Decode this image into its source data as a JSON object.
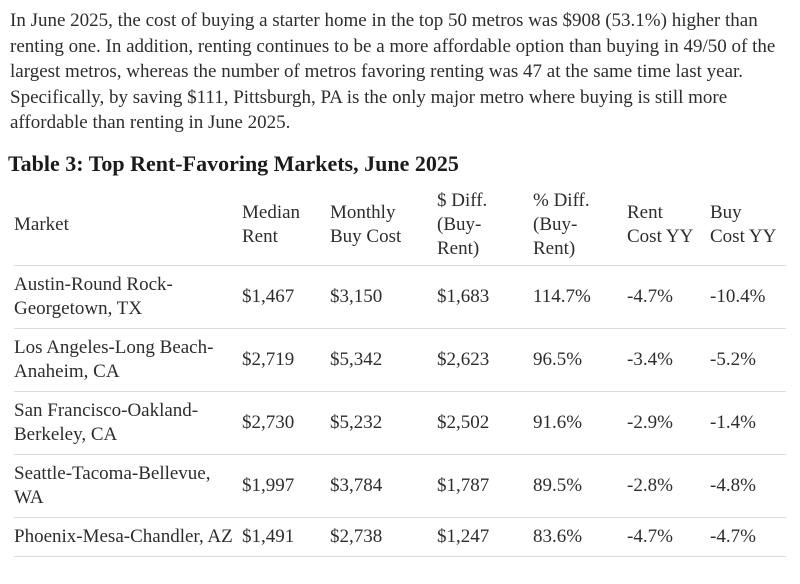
{
  "intro": {
    "text": "In June 2025, the cost of buying a starter home in the top 50 metros was $908 (53.1%) higher than renting one. In addition, renting continues to be a more affordable option than buying in 49/50 of the largest metros, whereas the number of metros favoring renting was 47 at the same time last year. Specifically, by saving $111, Pittsburgh, PA is the only major metro where buying is still more affordable than renting in June 2025."
  },
  "table": {
    "title": "Table 3: Top Rent-Favoring Markets, June 2025",
    "columns": [
      "Market",
      "Median Rent",
      "Monthly Buy Cost",
      "$ Diff. (Buy-Rent)",
      "% Diff. (Buy-Rent)",
      "Rent Cost YY",
      "Buy Cost YY"
    ],
    "rows": [
      {
        "market": "Austin-Round Rock-Georgetown, TX",
        "median_rent": "$1,467",
        "monthly_buy_cost": "$3,150",
        "diff_dollar": "$1,683",
        "diff_pct": "114.7%",
        "rent_cost_yy": "-4.7%",
        "buy_cost_yy": "-10.4%"
      },
      {
        "market": "Los Angeles-Long Beach-Anaheim, CA",
        "median_rent": "$2,719",
        "monthly_buy_cost": "$5,342",
        "diff_dollar": "$2,623",
        "diff_pct": "96.5%",
        "rent_cost_yy": "-3.4%",
        "buy_cost_yy": "-5.2%"
      },
      {
        "market": "San Francisco-Oakland-Berkeley, CA",
        "median_rent": "$2,730",
        "monthly_buy_cost": "$5,232",
        "diff_dollar": "$2,502",
        "diff_pct": "91.6%",
        "rent_cost_yy": "-2.9%",
        "buy_cost_yy": "-1.4%"
      },
      {
        "market": "Seattle-Tacoma-Bellevue, WA",
        "median_rent": "$1,997",
        "monthly_buy_cost": "$3,784",
        "diff_dollar": "$1,787",
        "diff_pct": "89.5%",
        "rent_cost_yy": "-2.8%",
        "buy_cost_yy": "-4.8%"
      },
      {
        "market": "Phoenix-Mesa-Chandler, AZ",
        "median_rent": "$1,491",
        "monthly_buy_cost": "$2,738",
        "diff_dollar": "$1,247",
        "diff_pct": "83.6%",
        "rent_cost_yy": "-4.7%",
        "buy_cost_yy": "-4.7%"
      }
    ]
  },
  "colors": {
    "background": "#ffffff",
    "body_text": "#2d2d2d",
    "title_text": "#1b1b1b",
    "row_border": "#dcdcdc"
  }
}
